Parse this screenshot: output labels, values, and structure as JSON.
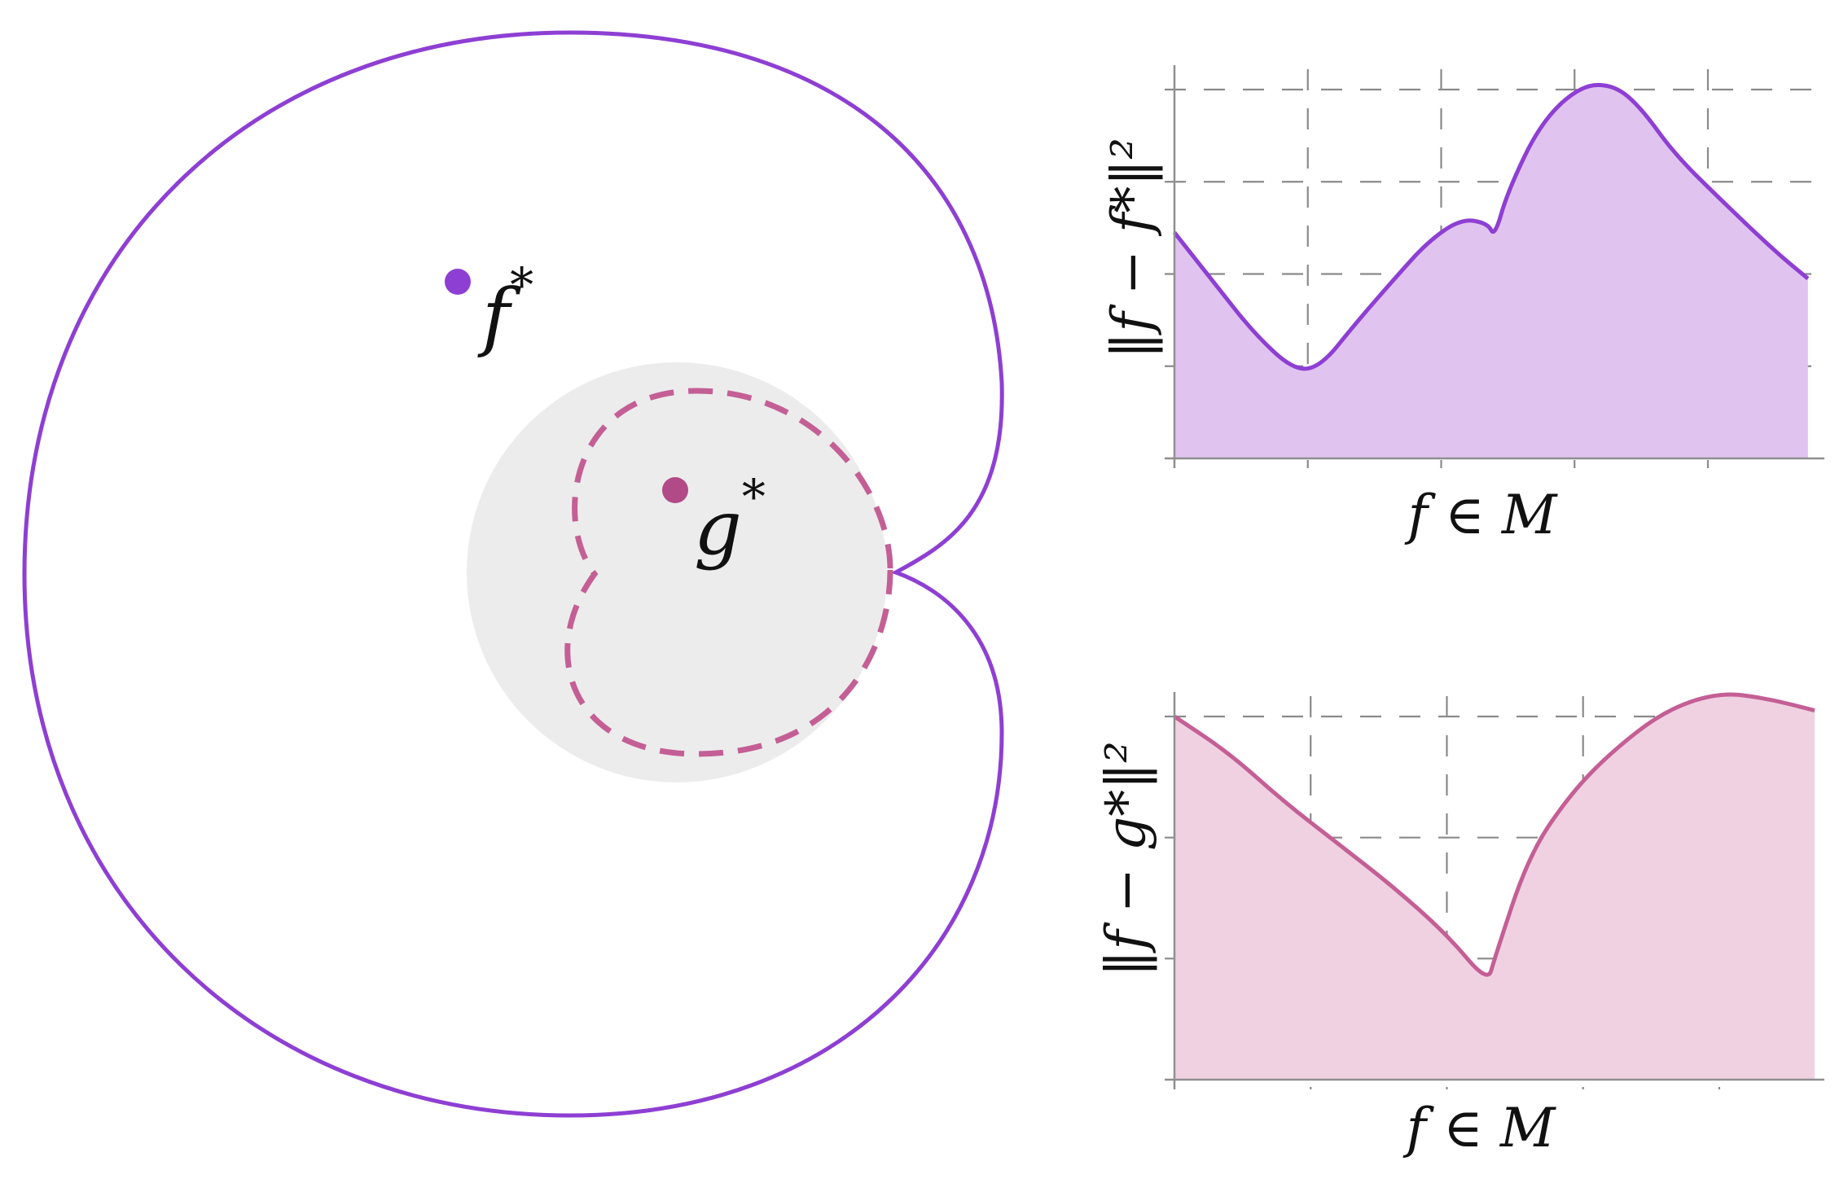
{
  "colors": {
    "purple": "#8e3fd3",
    "purple_fill": "#e1c3f0",
    "pink": "#c45f95",
    "pink_fill": "#f0d1e2",
    "ball": "#ececec",
    "gridline": "#8a8a8a"
  },
  "labels": {
    "f_star": "f",
    "g_star": "g",
    "star": "*",
    "top_xlabel": "f ∈ M",
    "bottom_xlabel": "f ∈ M",
    "top_ylabel": "‖f − f*‖²",
    "bottom_ylabel": "‖f − g*‖²"
  },
  "chart_data": [
    {
      "type": "area",
      "xlabel": "f ∈ M",
      "ylabel": "‖f − f*‖²",
      "series_color": "purple",
      "grid": true,
      "xlim": [
        0,
        4.8
      ],
      "ylim": [
        0,
        4
      ],
      "x": [
        0,
        0.3,
        0.6,
        0.9,
        1.1,
        1.35,
        1.65,
        1.9,
        2.15,
        2.35,
        2.4,
        2.5,
        2.75,
        3.05,
        3.3,
        3.5,
        3.75,
        4.1,
        4.5,
        4.75
      ],
      "y": [
        2.45,
        1.9,
        1.35,
        0.95,
        1.0,
        1.45,
        1.95,
        2.35,
        2.6,
        2.55,
        2.4,
        2.9,
        3.65,
        4.05,
        4.05,
        3.8,
        3.3,
        2.8,
        2.25,
        1.95
      ]
    },
    {
      "type": "area",
      "xlabel": "f ∈ M",
      "ylabel": "‖f − g*‖²",
      "series_color": "pink",
      "grid": true,
      "xlim": [
        0,
        4.7
      ],
      "ylim": [
        0,
        3
      ],
      "x": [
        0,
        0.4,
        0.8,
        1.2,
        1.6,
        2.0,
        2.3,
        2.35,
        2.6,
        2.9,
        3.2,
        3.6,
        4.0,
        4.35,
        4.7
      ],
      "y": [
        3.0,
        2.7,
        2.3,
        1.95,
        1.6,
        1.2,
        0.8,
        1.0,
        1.85,
        2.35,
        2.7,
        3.05,
        3.2,
        3.15,
        3.05
      ]
    }
  ]
}
